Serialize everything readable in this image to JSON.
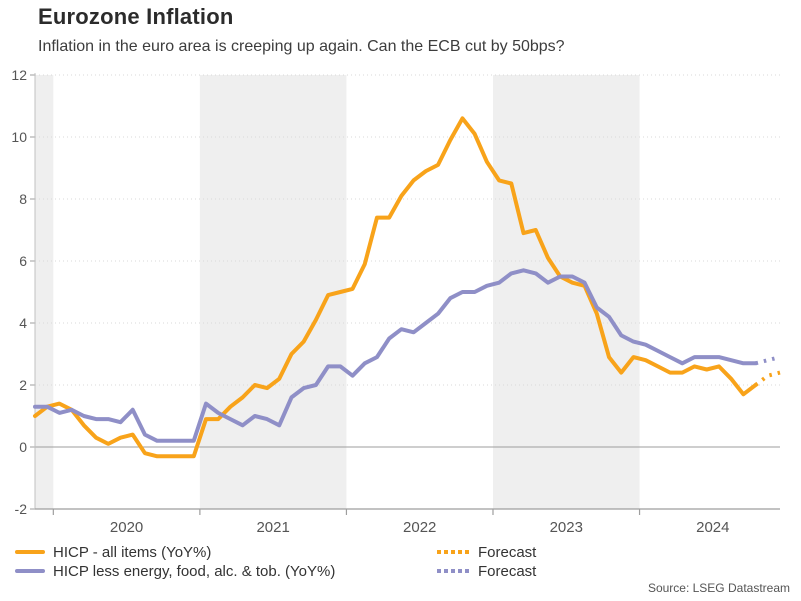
{
  "header": {
    "title": "Eurozone Inflation",
    "subtitle": "Inflation in the euro area is creeping up again. Can the ECB cut by 50bps?"
  },
  "legend": {
    "items": [
      {
        "label": "HICP - all items (YoY%)",
        "color": "#F8A31A"
      },
      {
        "label": "HICP less energy, food, alc. & tob. (YoY%)",
        "color": "#8F8FC7"
      }
    ],
    "forecast_items": [
      {
        "label": "Forecast",
        "color": "#F8A31A"
      },
      {
        "label": "Forecast",
        "color": "#8F8FC7"
      }
    ]
  },
  "footer": {
    "source": "Source: LSEG Datastream"
  },
  "chart_data": {
    "type": "line",
    "title": "Eurozone Inflation",
    "subtitle": "Inflation in the euro area is creeping up again. Can the ECB cut by 50bps?",
    "x_start_month": "2019-11",
    "x_frequency": "monthly",
    "ylim": [
      -2,
      12
    ],
    "yticks": [
      -2,
      0,
      2,
      4,
      6,
      8,
      10,
      12
    ],
    "year_labels": [
      "2020",
      "2021",
      "2022",
      "2023",
      "2024"
    ],
    "shaded_years": [
      2019,
      2021,
      2023
    ],
    "grid": "horizontal-dotted",
    "zero_line": true,
    "legend_position": "bottom",
    "colors": {
      "band": "#efefef",
      "grid": "#d8d8d8",
      "zero_line": "#9e9e9e",
      "axis": "#c0c0c0",
      "axis_dark": "#9e9e9e",
      "tick_text": "#555555"
    },
    "series": [
      {
        "name": "HICP - all items (YoY%)",
        "color": "#F8A31A",
        "values": [
          1.0,
          1.3,
          1.4,
          1.2,
          0.7,
          0.3,
          0.1,
          0.3,
          0.4,
          -0.2,
          -0.3,
          -0.3,
          -0.3,
          -0.3,
          0.9,
          0.9,
          1.3,
          1.6,
          2.0,
          1.9,
          2.2,
          3.0,
          3.4,
          4.1,
          4.9,
          5.0,
          5.1,
          5.9,
          7.4,
          7.4,
          8.1,
          8.6,
          8.9,
          9.1,
          9.9,
          10.6,
          10.1,
          9.2,
          8.6,
          8.5,
          6.9,
          7.0,
          6.1,
          5.5,
          5.3,
          5.2,
          4.3,
          2.9,
          2.4,
          2.9,
          2.8,
          2.6,
          2.4,
          2.4,
          2.6,
          2.5,
          2.6,
          2.2,
          1.7,
          2.0
        ]
      },
      {
        "name": "HICP less energy, food, alc. & tob. (YoY%)",
        "color": "#8F8FC7",
        "values": [
          1.3,
          1.3,
          1.1,
          1.2,
          1.0,
          0.9,
          0.9,
          0.8,
          1.2,
          0.4,
          0.2,
          0.2,
          0.2,
          0.2,
          1.4,
          1.1,
          0.9,
          0.7,
          1.0,
          0.9,
          0.7,
          1.6,
          1.9,
          2.0,
          2.6,
          2.6,
          2.3,
          2.7,
          2.9,
          3.5,
          3.8,
          3.7,
          4.0,
          4.3,
          4.8,
          5.0,
          5.0,
          5.2,
          5.3,
          5.6,
          5.7,
          5.6,
          5.3,
          5.5,
          5.5,
          5.3,
          4.5,
          4.2,
          3.6,
          3.4,
          3.3,
          3.1,
          2.9,
          2.7,
          2.9,
          2.9,
          2.9,
          2.8,
          2.7,
          2.7
        ]
      }
    ],
    "forecast_series": [
      {
        "name": "Forecast (HICP - all items)",
        "color": "#F8A31A",
        "start_index": 59,
        "values": [
          2.0,
          2.3,
          2.4
        ]
      },
      {
        "name": "Forecast (HICP core)",
        "color": "#8F8FC7",
        "start_index": 59,
        "values": [
          2.7,
          2.8,
          2.9
        ]
      }
    ]
  }
}
